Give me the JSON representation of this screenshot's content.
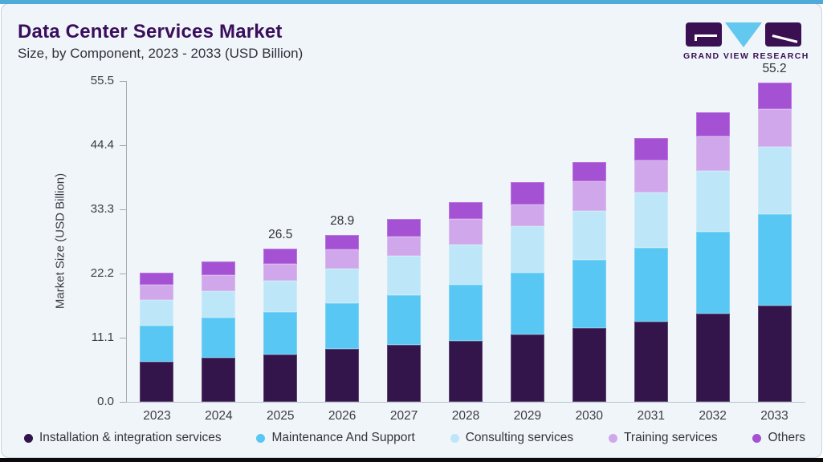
{
  "header": {
    "title": "Data Center Services Market",
    "subtitle": "Size, by Component, 2023 - 2033 (USD Billion)",
    "logo_text": "GRAND VIEW RESEARCH"
  },
  "colors": {
    "accent_top_bar": "#4FA9D9",
    "title_text": "#3A0E5B",
    "body_text": "#3B3B45",
    "card_background": "#EFF5F9",
    "axis_line": "#A2ABB3",
    "logo_purple": "#3A1053",
    "logo_cyan": "#62C8EF"
  },
  "chart_data": {
    "type": "bar",
    "stacked": true,
    "title": "Data Center Services Market Size, by Component, 2023 - 2033 (USD Billion)",
    "xlabel": "",
    "ylabel": "Market Size (USD Billion)",
    "ylim": [
      0,
      55.5
    ],
    "ytick_labels": [
      "0.0",
      "11.1",
      "22.2",
      "33.3",
      "44.4",
      "55.5"
    ],
    "grid": false,
    "legend_position": "bottom",
    "categories": [
      "2023",
      "2024",
      "2025",
      "2026",
      "2027",
      "2028",
      "2029",
      "2030",
      "2031",
      "2032",
      "2033"
    ],
    "series": [
      {
        "name": "Installation & integration services",
        "color": "#33144B",
        "values": [
          7.0,
          7.6,
          8.2,
          9.1,
          9.8,
          10.6,
          11.6,
          12.7,
          13.9,
          15.2,
          16.6
        ]
      },
      {
        "name": "Maintenance And Support",
        "color": "#58C7F3",
        "values": [
          6.2,
          6.9,
          7.4,
          8.0,
          8.7,
          9.6,
          10.7,
          11.8,
          12.8,
          14.2,
          15.8
        ]
      },
      {
        "name": "Consulting services",
        "color": "#BDE7F8",
        "values": [
          4.4,
          4.6,
          5.3,
          5.9,
          6.7,
          7.0,
          8.1,
          8.5,
          9.5,
          10.6,
          11.7
        ]
      },
      {
        "name": "Training services",
        "color": "#D0A7EA",
        "values": [
          2.6,
          2.8,
          3.0,
          3.3,
          3.4,
          4.4,
          3.8,
          5.1,
          5.5,
          5.9,
          6.6
        ]
      },
      {
        "name": "Others",
        "color": "#A551D4",
        "values": [
          2.2,
          2.4,
          2.6,
          2.6,
          3.0,
          3.0,
          3.8,
          3.4,
          4.0,
          4.2,
          4.5
        ]
      }
    ],
    "totals": [
      22.4,
      24.3,
      26.5,
      28.9,
      31.6,
      34.6,
      38.0,
      41.5,
      45.7,
      50.1,
      55.2
    ],
    "total_labels": [
      null,
      null,
      "26.5",
      "28.9",
      null,
      null,
      null,
      null,
      null,
      null,
      "55.2"
    ]
  }
}
